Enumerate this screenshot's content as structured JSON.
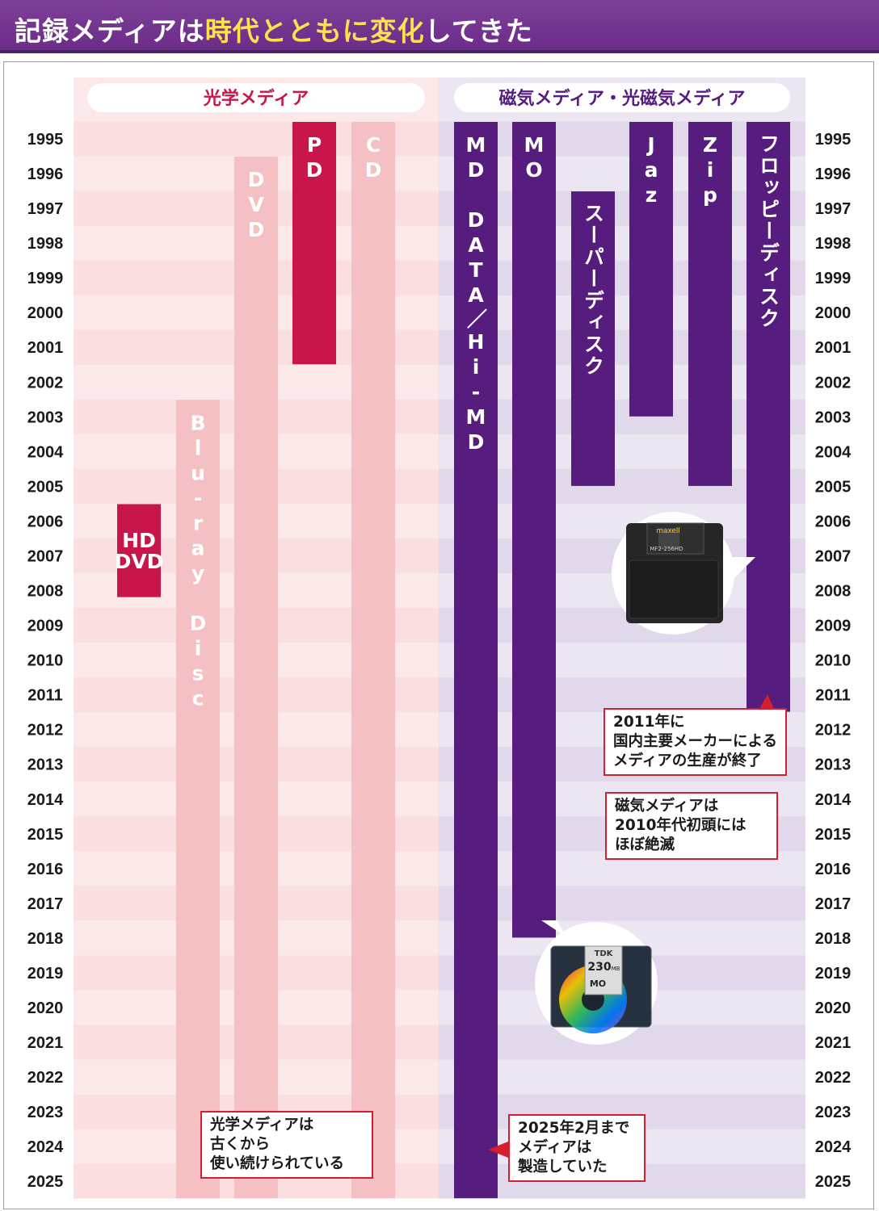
{
  "title": {
    "prefix": "記録メディアは",
    "highlight": "時代とともに変化",
    "suffix": "してきた"
  },
  "colors": {
    "title_bg": "#7d3f98",
    "title_highlight": "#ffe14d",
    "optical_bar": "#f4c0c3",
    "optical_dark_bar": "#c8154a",
    "magnetic_bar": "#561d7e",
    "optical_header_text": "#c8154a",
    "magnetic_header_text": "#561d7e",
    "callout_border": "#d31f30"
  },
  "groups": {
    "optical": "光学メディア",
    "magnetic": "磁気メディア・光磁気メディア"
  },
  "chart_data": {
    "type": "timeline",
    "y_axis": {
      "range": [
        1995,
        2025
      ],
      "tick_labels": [
        "1995",
        "1996",
        "1997",
        "1998",
        "1999",
        "2000",
        "2001",
        "2002",
        "2003",
        "2004",
        "2005",
        "2006",
        "2007",
        "2008",
        "2009",
        "2010",
        "2011",
        "2012",
        "2013",
        "2014",
        "2015",
        "2016",
        "2017",
        "2018",
        "2019",
        "2020",
        "2021",
        "2022",
        "2023",
        "2024",
        "2025"
      ]
    },
    "media": [
      {
        "name": "HD DVD",
        "group": "optical",
        "start": 2006,
        "end": 2007.7,
        "style": "dark",
        "label_lines": [
          "HD",
          "DVD"
        ]
      },
      {
        "name": "Blu-ray Disc",
        "group": "optical",
        "start": 2003,
        "end": 2025,
        "style": "light",
        "label": "Blu-ray Disc"
      },
      {
        "name": "DVD",
        "group": "optical",
        "start": 1996,
        "end": 2025,
        "style": "light",
        "label": "DVD"
      },
      {
        "name": "PD",
        "group": "optical",
        "start": 1995,
        "end": 2001,
        "style": "dark",
        "label": "PD"
      },
      {
        "name": "CD",
        "group": "optical",
        "start": 1995,
        "end": 2025,
        "style": "light",
        "label": "CD"
      },
      {
        "name": "MD DATA/Hi-MD",
        "group": "magnetic",
        "start": 1995,
        "end": 2025,
        "label": "MD DATA／Hi-MD"
      },
      {
        "name": "MO",
        "group": "magnetic",
        "start": 1995,
        "end": 2017.5,
        "label": "MO"
      },
      {
        "name": "スーパーディスク",
        "group": "magnetic",
        "start": 1997,
        "end": 2004.5,
        "label": "スーパーディスク"
      },
      {
        "name": "Jaz",
        "group": "magnetic",
        "start": 1995,
        "end": 2002.5,
        "label": "Jaz"
      },
      {
        "name": "Zip",
        "group": "magnetic",
        "start": 1995,
        "end": 2004.5,
        "label": "Zip"
      },
      {
        "name": "フロッピーディスク",
        "group": "magnetic",
        "start": 1995,
        "end": 2011,
        "label": "フロッピーディスク"
      }
    ]
  },
  "callouts": {
    "floppy_end": [
      "2011年に",
      "国内主要メーカーによる",
      "メディアの生産が終了"
    ],
    "magnetic_extinct": [
      "磁気メディアは",
      "2010年代初頭には",
      "ほぼ絶滅"
    ],
    "optical_long": [
      "光学メディアは",
      "古くから",
      "使い続けられている"
    ],
    "md_end": [
      "2025年2月まで",
      "メディアは",
      "製造していた"
    ]
  },
  "photos": {
    "floppy": {
      "brand": "maxell",
      "model": "MF2-256HD"
    },
    "mo": {
      "brand": "TDK",
      "capacity": "230",
      "unit": "MB",
      "media": "MO"
    }
  }
}
